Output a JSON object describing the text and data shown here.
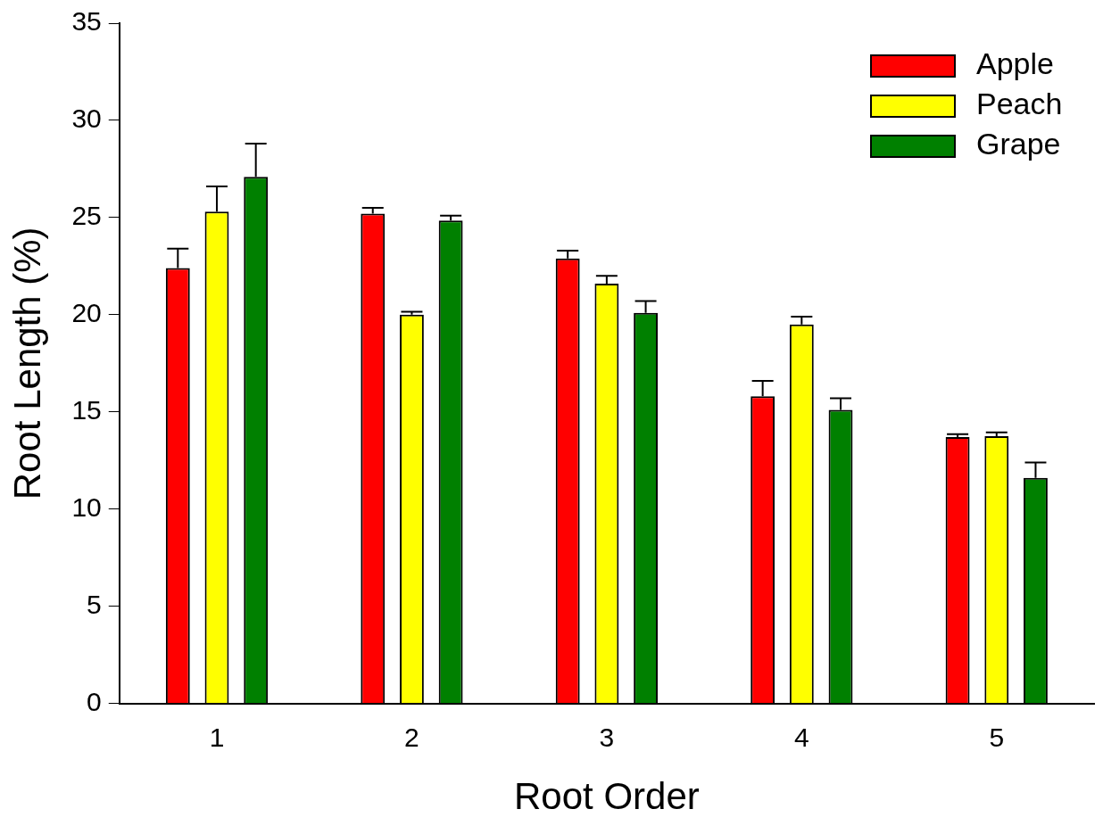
{
  "chart_data": {
    "type": "bar",
    "xlabel": "Root Order",
    "ylabel": "Root Length (%)",
    "categories": [
      "1",
      "2",
      "3",
      "4",
      "5"
    ],
    "series": [
      {
        "name": "Apple",
        "color": "#ff0000",
        "values": [
          22.4,
          25.2,
          22.9,
          15.8,
          13.7
        ],
        "errors": [
          1.0,
          0.3,
          0.4,
          0.8,
          0.15
        ]
      },
      {
        "name": "Peach",
        "color": "#ffff00",
        "values": [
          25.3,
          20.0,
          21.6,
          19.5,
          13.75
        ],
        "errors": [
          1.3,
          0.15,
          0.4,
          0.4,
          0.2
        ]
      },
      {
        "name": "Grape",
        "color": "#008000",
        "values": [
          27.1,
          24.85,
          20.1,
          15.1,
          11.6
        ],
        "errors": [
          1.7,
          0.25,
          0.6,
          0.6,
          0.8
        ]
      }
    ],
    "ylim": [
      0,
      35
    ],
    "yticks": [
      0,
      5,
      10,
      15,
      20,
      25,
      30,
      35
    ],
    "grid": false,
    "legend": "top right"
  }
}
